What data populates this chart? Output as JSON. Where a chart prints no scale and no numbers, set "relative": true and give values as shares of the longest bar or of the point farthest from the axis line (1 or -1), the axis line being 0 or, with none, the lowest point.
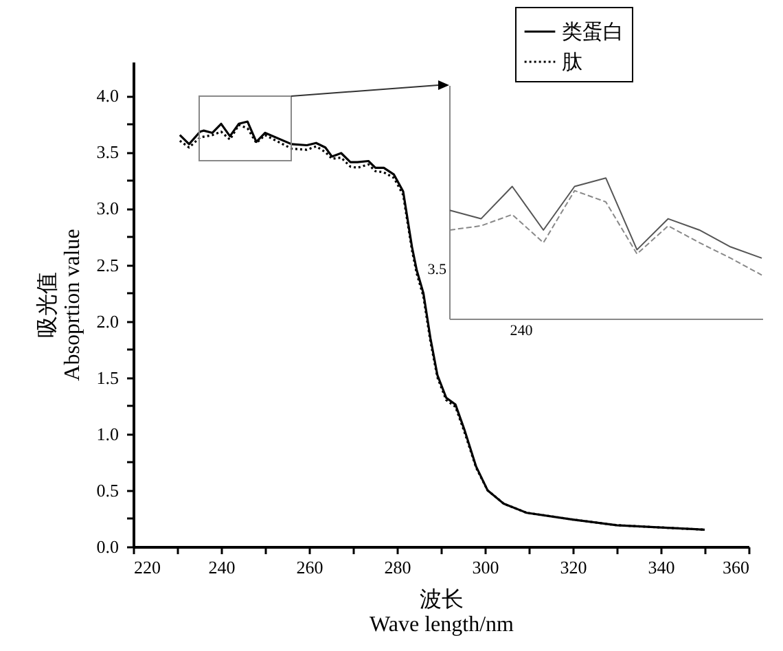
{
  "chart_data": [
    {
      "type": "line",
      "xlabel": "波长\nWave length/nm",
      "ylabel": "吸光值\nAbsoprtion value",
      "xlim": [
        220,
        360
      ],
      "ylim": [
        0,
        4.3
      ],
      "xticks": [
        220,
        {
          "value": 230,
          "label": null
        },
        240,
        {
          "value": 250,
          "label": null
        },
        260,
        {
          "value": 270,
          "label": null
        },
        280,
        {
          "value": 290,
          "label": null
        },
        300,
        {
          "value": 310,
          "label": null
        },
        320,
        {
          "value": 330,
          "label": null
        },
        340,
        {
          "value": 350,
          "label": null
        },
        360
      ],
      "yticks": [
        {
          "value": 0,
          "label": "0.0"
        },
        {
          "value": 0.25,
          "label": null
        },
        0.5,
        {
          "value": 0.75,
          "label": null
        },
        {
          "value": 1,
          "label": "1.0"
        },
        {
          "value": 1.25,
          "label": null
        },
        1.5,
        {
          "value": 1.75,
          "label": null
        },
        {
          "value": 2,
          "label": "2.0"
        },
        {
          "value": 2.25,
          "label": null
        },
        2.5,
        {
          "value": 2.75,
          "label": null
        },
        {
          "value": 3,
          "label": "3.0"
        },
        {
          "value": 3.25,
          "label": null
        },
        3.5,
        {
          "value": 3.75,
          "label": null
        },
        {
          "value": 4,
          "label": "4.0"
        }
      ],
      "legend": "top right",
      "series": [
        {
          "name": "类蛋白",
          "color": "#000000",
          "line_style": "solid",
          "x": [
            230.6,
            232.7,
            235.2,
            236,
            238,
            240,
            242,
            244,
            246,
            248,
            250,
            256,
            259.5,
            261.6,
            263.7,
            265.2,
            267.3,
            269.4,
            271,
            273.5,
            275.1,
            277,
            279.3,
            281.4,
            283.4,
            284.5,
            286,
            287.6,
            289.2,
            291.2,
            293.3,
            295.4,
            298,
            300.6,
            304.3,
            309.5,
            320,
            330,
            340,
            350
          ],
          "values": [
            3.65,
            3.57,
            3.68,
            3.69,
            3.67,
            3.75,
            3.64,
            3.75,
            3.77,
            3.59,
            3.67,
            3.57,
            3.56,
            3.58,
            3.54,
            3.46,
            3.49,
            3.41,
            3.41,
            3.42,
            3.36,
            3.36,
            3.3,
            3.15,
            2.66,
            2.45,
            2.25,
            1.85,
            1.52,
            1.32,
            1.26,
            1.03,
            0.71,
            0.5,
            0.38,
            0.3,
            0.24,
            0.19,
            0.17,
            0.15
          ]
        },
        {
          "name": "肽",
          "color": "#000000",
          "line_style": "dotted",
          "x": [
            230.6,
            232.7,
            235.2,
            238,
            240,
            242,
            244,
            246,
            248,
            250,
            256,
            259.5,
            261.6,
            263.7,
            265.2,
            267.3,
            269.4,
            271,
            273.5,
            275.1,
            277,
            279.3,
            281.4,
            283.4,
            284.5,
            286,
            287.6,
            289.2,
            291.2,
            293.3,
            295.4,
            298,
            300.6,
            304.3,
            309.5,
            320,
            330,
            340,
            350
          ],
          "values": [
            3.6,
            3.54,
            3.63,
            3.65,
            3.68,
            3.61,
            3.74,
            3.71,
            3.58,
            3.65,
            3.53,
            3.52,
            3.55,
            3.5,
            3.44,
            3.45,
            3.37,
            3.36,
            3.39,
            3.33,
            3.32,
            3.27,
            3.12,
            2.63,
            2.42,
            2.22,
            1.82,
            1.5,
            1.3,
            1.24,
            1.01,
            0.7,
            0.5,
            0.38,
            0.3,
            0.24,
            0.19,
            0.17,
            0.15
          ]
        }
      ]
    },
    {
      "type": "line",
      "relative": true,
      "categories": [
        null,
        null,
        null,
        null,
        null,
        null,
        null,
        null,
        null,
        null,
        null
      ],
      "annotations": [
        "240",
        "3.5"
      ],
      "series": [
        {
          "color": "#555555",
          "line_style": "solid",
          "values": [
            0.77,
            0.71,
            0.94,
            0.63,
            0.94,
            1,
            0.49,
            0.71,
            0.63,
            0.51,
            0.43
          ]
        },
        {
          "color": "#888888",
          "line_style": "dashed",
          "values": [
            0.63,
            0.66,
            0.74,
            0.54,
            0.91,
            0.83,
            0.46,
            0.66,
            0.54,
            0.43,
            0.31
          ]
        }
      ]
    }
  ]
}
